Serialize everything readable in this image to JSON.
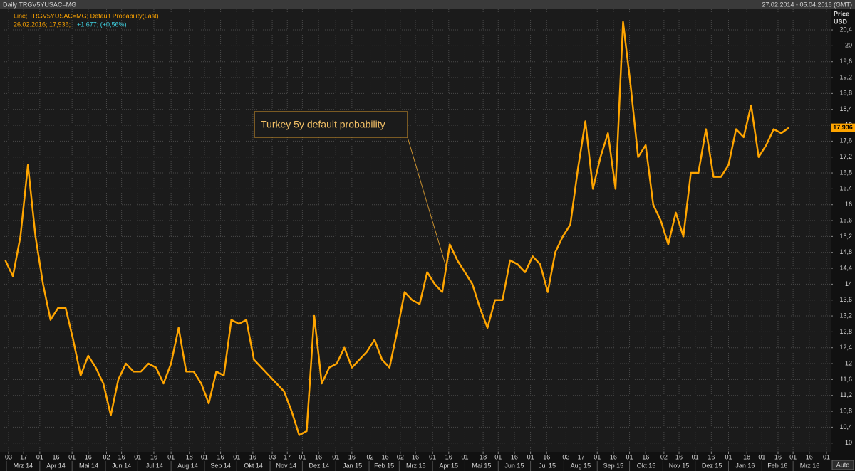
{
  "chart_data": {
    "type": "line",
    "header_left": "Daily TRGV5YUSAC=MG",
    "header_right": "27.02.2014 - 05.04.2016 (GMT)",
    "info_main": "26.02.2016; 17,936;",
    "info_change": "+1,677; (+0,56%)",
    "y_axis_label": [
      "Price",
      "USD"
    ],
    "annotation": "Turkey 5y default probability",
    "button": "Auto",
    "grid": true,
    "xlim": [
      "2014-02-27",
      "2016-04-05"
    ],
    "ylim": [
      9.78,
      20.92
    ],
    "yticks": [
      10,
      {
        "value": 10.4,
        "label": "10,4"
      },
      {
        "value": 10.8,
        "label": "10,8"
      },
      {
        "value": 11.2,
        "label": "11,2"
      },
      {
        "value": 11.6,
        "label": "11,6"
      },
      12,
      {
        "value": 12.4,
        "label": "12,4"
      },
      {
        "value": 12.8,
        "label": "12,8"
      },
      {
        "value": 13.2,
        "label": "13,2"
      },
      {
        "value": 13.6,
        "label": "13,6"
      },
      14,
      {
        "value": 14.4,
        "label": "14,4"
      },
      {
        "value": 14.8,
        "label": "14,8"
      },
      {
        "value": 15.2,
        "label": "15,2"
      },
      {
        "value": 15.6,
        "label": "15,6"
      },
      16,
      {
        "value": 16.4,
        "label": "16,4"
      },
      {
        "value": 16.8,
        "label": "16,8"
      },
      {
        "value": 17.2,
        "label": "17,2"
      },
      {
        "value": 17.6,
        "label": "17,6"
      },
      18,
      {
        "value": 18.4,
        "label": "18,4"
      },
      {
        "value": 18.8,
        "label": "18,8"
      },
      {
        "value": 19.2,
        "label": "19,2"
      },
      {
        "value": 19.6,
        "label": "19,6"
      },
      20,
      {
        "value": 20.4,
        "label": "20,4"
      }
    ],
    "xticks": [
      {
        "value": "2014-03-03",
        "label": "03"
      },
      {
        "value": "2014-03-17",
        "label": "17"
      },
      {
        "value": "2014-04-01",
        "label": "01"
      },
      {
        "value": "2014-04-16",
        "label": "16"
      },
      {
        "value": "2014-05-01",
        "label": "01"
      },
      {
        "value": "2014-05-16",
        "label": "16"
      },
      {
        "value": "2014-06-02",
        "label": "02"
      },
      {
        "value": "2014-06-16",
        "label": "16"
      },
      {
        "value": "2014-07-01",
        "label": "01"
      },
      {
        "value": "2014-07-16",
        "label": "16"
      },
      {
        "value": "2014-08-01",
        "label": "01"
      },
      {
        "value": "2014-08-18",
        "label": "18"
      },
      {
        "value": "2014-09-01",
        "label": "01"
      },
      {
        "value": "2014-09-16",
        "label": "16"
      },
      {
        "value": "2014-10-01",
        "label": "01"
      },
      {
        "value": "2014-10-16",
        "label": "16"
      },
      {
        "value": "2014-11-03",
        "label": "03"
      },
      {
        "value": "2014-11-17",
        "label": "17"
      },
      {
        "value": "2014-12-01",
        "label": "01"
      },
      {
        "value": "2014-12-16",
        "label": "16"
      },
      {
        "value": "2015-01-01",
        "label": "01"
      },
      {
        "value": "2015-01-16",
        "label": "16"
      },
      {
        "value": "2015-02-02",
        "label": "02"
      },
      {
        "value": "2015-02-16",
        "label": "16"
      },
      {
        "value": "2015-03-02",
        "label": "02"
      },
      {
        "value": "2015-03-16",
        "label": "16"
      },
      {
        "value": "2015-04-01",
        "label": "01"
      },
      {
        "value": "2015-04-16",
        "label": "16"
      },
      {
        "value": "2015-05-01",
        "label": "01"
      },
      {
        "value": "2015-05-18",
        "label": "18"
      },
      {
        "value": "2015-06-01",
        "label": "01"
      },
      {
        "value": "2015-06-16",
        "label": "16"
      },
      {
        "value": "2015-07-01",
        "label": "01"
      },
      {
        "value": "2015-07-16",
        "label": "16"
      },
      {
        "value": "2015-08-03",
        "label": "03"
      },
      {
        "value": "2015-08-17",
        "label": "17"
      },
      {
        "value": "2015-09-01",
        "label": "01"
      },
      {
        "value": "2015-09-16",
        "label": "16"
      },
      {
        "value": "2015-10-01",
        "label": "01"
      },
      {
        "value": "2015-10-16",
        "label": "16"
      },
      {
        "value": "2015-11-02",
        "label": "02"
      },
      {
        "value": "2015-11-16",
        "label": "16"
      },
      {
        "value": "2015-12-01",
        "label": "01"
      },
      {
        "value": "2015-12-16",
        "label": "16"
      },
      {
        "value": "2016-01-01",
        "label": "01"
      },
      {
        "value": "2016-01-18",
        "label": "18"
      },
      {
        "value": "2016-02-01",
        "label": "01"
      },
      {
        "value": "2016-02-16",
        "label": "16"
      },
      {
        "value": "2016-03-01",
        "label": "01"
      },
      {
        "value": "2016-03-16",
        "label": "16"
      },
      {
        "value": "2016-04-01",
        "label": "01"
      }
    ],
    "months": [
      {
        "value": "2014-03",
        "label": "Mrz 14"
      },
      {
        "value": "2014-04",
        "label": "Apr 14"
      },
      {
        "value": "2014-05",
        "label": "Mai 14"
      },
      {
        "value": "2014-06",
        "label": "Jun 14"
      },
      {
        "value": "2014-07",
        "label": "Jul 14"
      },
      {
        "value": "2014-08",
        "label": "Aug 14"
      },
      {
        "value": "2014-09",
        "label": "Sep 14"
      },
      {
        "value": "2014-10",
        "label": "Okt 14"
      },
      {
        "value": "2014-11",
        "label": "Nov 14"
      },
      {
        "value": "2014-12",
        "label": "Dez 14"
      },
      {
        "value": "2015-01",
        "label": "Jan 15"
      },
      {
        "value": "2015-02",
        "label": "Feb 15"
      },
      {
        "value": "2015-03",
        "label": "Mrz 15"
      },
      {
        "value": "2015-04",
        "label": "Apr 15"
      },
      {
        "value": "2015-05",
        "label": "Mai 15"
      },
      {
        "value": "2015-06",
        "label": "Jun 15"
      },
      {
        "value": "2015-07",
        "label": "Jul 15"
      },
      {
        "value": "2015-08",
        "label": "Aug 15"
      },
      {
        "value": "2015-09",
        "label": "Sep 15"
      },
      {
        "value": "2015-10",
        "label": "Okt 15"
      },
      {
        "value": "2015-11",
        "label": "Nov 15"
      },
      {
        "value": "2015-12",
        "label": "Dez 15"
      },
      {
        "value": "2016-01",
        "label": "Jan 16"
      },
      {
        "value": "2016-02",
        "label": "Feb 16"
      },
      {
        "value": "2016-03",
        "label": "Mrz 16"
      }
    ],
    "current_value": {
      "value": 17.936,
      "label": "17,936"
    },
    "x": [
      "2014-02-28",
      "2014-03-07",
      "2014-03-14",
      "2014-03-21",
      "2014-03-28",
      "2014-04-04",
      "2014-04-11",
      "2014-04-18",
      "2014-04-25",
      "2014-05-02",
      "2014-05-09",
      "2014-05-16",
      "2014-05-23",
      "2014-05-30",
      "2014-06-06",
      "2014-06-13",
      "2014-06-20",
      "2014-06-27",
      "2014-07-04",
      "2014-07-11",
      "2014-07-18",
      "2014-07-25",
      "2014-08-01",
      "2014-08-08",
      "2014-08-15",
      "2014-08-22",
      "2014-08-29",
      "2014-09-05",
      "2014-09-12",
      "2014-09-19",
      "2014-09-26",
      "2014-10-03",
      "2014-10-10",
      "2014-10-17",
      "2014-10-24",
      "2014-10-31",
      "2014-11-07",
      "2014-11-14",
      "2014-11-21",
      "2014-11-28",
      "2014-12-05",
      "2014-12-12",
      "2014-12-19",
      "2014-12-26",
      "2015-01-02",
      "2015-01-09",
      "2015-01-16",
      "2015-01-23",
      "2015-01-30",
      "2015-02-06",
      "2015-02-13",
      "2015-02-20",
      "2015-02-27",
      "2015-03-06",
      "2015-03-13",
      "2015-03-20",
      "2015-03-27",
      "2015-04-03",
      "2015-04-10",
      "2015-04-17",
      "2015-04-24",
      "2015-05-01",
      "2015-05-08",
      "2015-05-15",
      "2015-05-22",
      "2015-05-29",
      "2015-06-05",
      "2015-06-12",
      "2015-06-19",
      "2015-06-26",
      "2015-07-03",
      "2015-07-10",
      "2015-07-17",
      "2015-07-24",
      "2015-07-31",
      "2015-08-07",
      "2015-08-14",
      "2015-08-21",
      "2015-08-28",
      "2015-09-04",
      "2015-09-11",
      "2015-09-18",
      "2015-09-25",
      "2015-10-02",
      "2015-10-09",
      "2015-10-16",
      "2015-10-23",
      "2015-10-30",
      "2015-11-06",
      "2015-11-13",
      "2015-11-20",
      "2015-11-27",
      "2015-12-04",
      "2015-12-11",
      "2015-12-18",
      "2015-12-25",
      "2016-01-01",
      "2016-01-08",
      "2016-01-15",
      "2016-01-22",
      "2016-01-29",
      "2016-02-05",
      "2016-02-12",
      "2016-02-19",
      "2016-02-26"
    ],
    "series": [
      {
        "name": "Line; TRGV5YUSAC=MG; Default Probability(Last)",
        "color": "#ffa500",
        "values": [
          14.6,
          14.2,
          15.2,
          17.0,
          15.2,
          14.0,
          13.1,
          13.4,
          13.4,
          12.6,
          11.7,
          12.2,
          11.9,
          11.5,
          10.7,
          11.6,
          12.0,
          11.8,
          11.8,
          12.0,
          11.9,
          11.5,
          12.0,
          12.9,
          11.8,
          11.8,
          11.5,
          11.0,
          11.8,
          11.7,
          13.1,
          13.0,
          13.1,
          12.1,
          11.9,
          11.7,
          11.5,
          11.3,
          10.8,
          10.2,
          10.3,
          13.2,
          11.5,
          11.9,
          12.0,
          12.4,
          11.9,
          12.1,
          12.3,
          12.6,
          12.1,
          11.9,
          12.8,
          13.8,
          13.6,
          13.5,
          14.3,
          14.0,
          13.8,
          15.0,
          14.6,
          14.3,
          14.0,
          13.4,
          12.9,
          13.6,
          13.6,
          14.6,
          14.5,
          14.3,
          14.7,
          14.5,
          13.8,
          14.8,
          15.2,
          15.5,
          16.9,
          18.1,
          16.4,
          17.2,
          17.8,
          16.4,
          20.6,
          19.0,
          17.2,
          17.5,
          16.0,
          15.6,
          15.0,
          15.8,
          15.2,
          16.8,
          16.8,
          17.9,
          16.7,
          16.7,
          17.0,
          17.9,
          17.7,
          18.5,
          17.2,
          17.5,
          17.9,
          17.8,
          17.936
        ]
      }
    ]
  }
}
